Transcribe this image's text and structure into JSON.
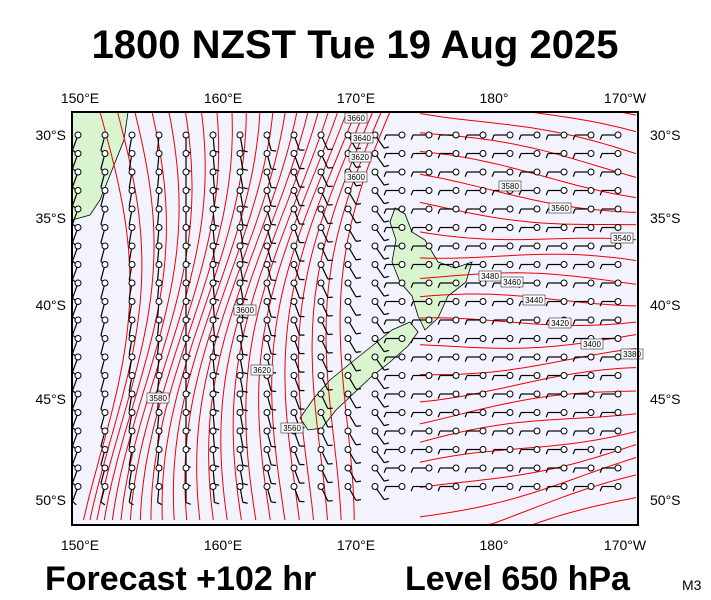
{
  "header": {
    "title": "1800 NZST Tue 19 Aug 2025"
  },
  "map": {
    "longitude_labels": [
      "150°E",
      "160°E",
      "170°E",
      "180°",
      "170°W"
    ],
    "latitude_labels": [
      "30°S",
      "35°S",
      "40°S",
      "45°S",
      "50°S"
    ],
    "contour_labels": [
      "3660",
      "3640",
      "3620",
      "3600",
      "3580",
      "3560",
      "3540",
      "3480",
      "3460",
      "3440",
      "3420",
      "3400",
      "3380",
      "3620",
      "3600",
      "3580",
      "3560"
    ]
  },
  "footer": {
    "forecast": "Forecast +102 hr",
    "level": "Level 650 hPa",
    "model": "M3"
  }
}
